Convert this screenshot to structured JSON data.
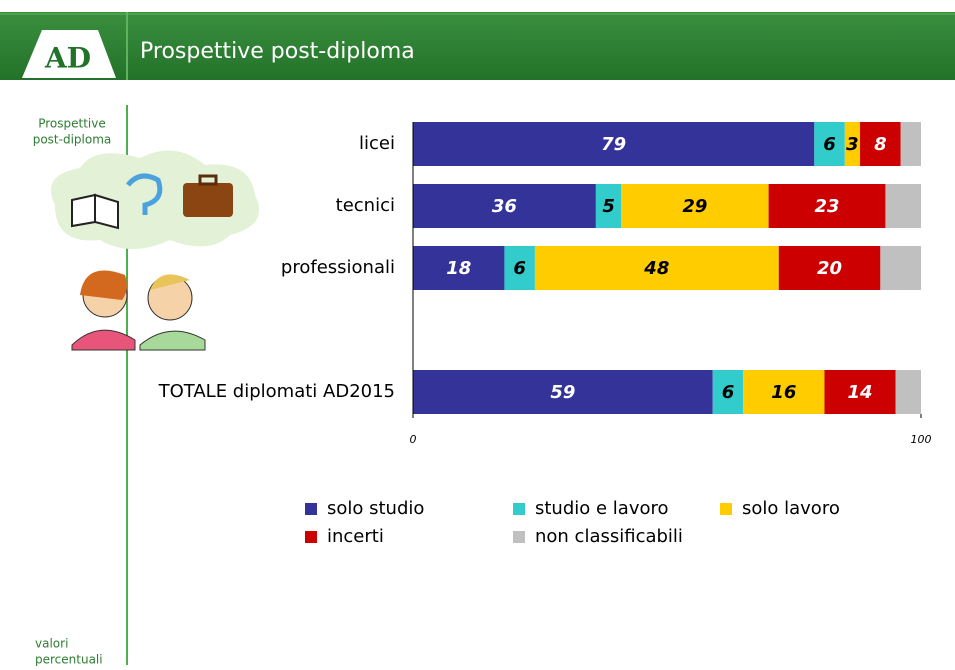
{
  "header": {
    "logo": "AD",
    "title": "Prospettive post-diploma"
  },
  "sidebar": {
    "top": [
      "Prospettive",
      "post-diploma"
    ],
    "bottom": [
      "valori",
      "percentuali"
    ]
  },
  "chart_data": {
    "type": "stacked_barh",
    "categories": [
      "licei",
      "tecnici",
      "professionali",
      "TOTALE diplomati AD2015"
    ],
    "series": [
      {
        "name": "solo studio",
        "color": "#333399",
        "labels": true,
        "values": [
          79,
          36,
          18,
          59
        ]
      },
      {
        "name": "studio e lavoro",
        "color": "#33cccc",
        "labels": true,
        "values": [
          6,
          5,
          6,
          6
        ]
      },
      {
        "name": "solo lavoro",
        "color": "#ffcc00",
        "labels": true,
        "values": [
          3,
          29,
          48,
          16
        ]
      },
      {
        "name": "incerti",
        "color": "#cc0000",
        "labels": true,
        "values": [
          8,
          23,
          20,
          14
        ]
      },
      {
        "name": "non classificabili",
        "color": "#c0c0c0",
        "labels": false,
        "values": [
          4,
          7,
          8,
          5
        ]
      }
    ],
    "xlim": [
      0,
      100
    ],
    "xticks": [
      0,
      100
    ]
  }
}
